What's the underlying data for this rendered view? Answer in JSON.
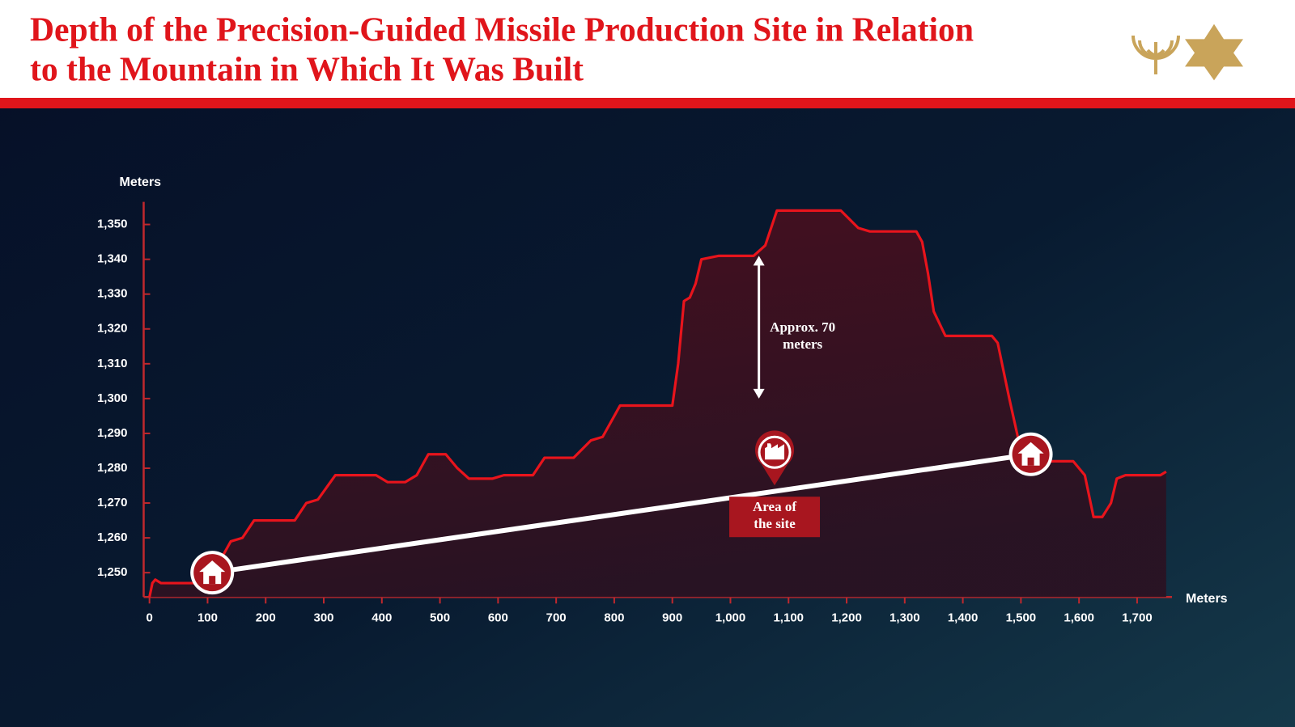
{
  "chart_data": {
    "type": "area",
    "title": [
      "Depth of the Precision-Guided Missile Production Site in Relation",
      "to the Mountain in Which It Was Built"
    ],
    "ylabel": "Meters",
    "xlabel": "Meters",
    "color": "#e8141c",
    "x": [
      0,
      5,
      10,
      20,
      100,
      110,
      140,
      160,
      180,
      250,
      270,
      290,
      320,
      390,
      410,
      440,
      460,
      480,
      510,
      530,
      550,
      590,
      610,
      660,
      680,
      730,
      760,
      780,
      810,
      900,
      910,
      920,
      930,
      940,
      950,
      980,
      1040,
      1060,
      1080,
      1190,
      1220,
      1240,
      1320,
      1330,
      1340,
      1350,
      1370,
      1450,
      1460,
      1480,
      1500,
      1530,
      1590,
      1610,
      1625,
      1640,
      1655,
      1665,
      1680,
      1740,
      1750
    ],
    "values": [
      1243,
      1247,
      1248,
      1247,
      1247,
      1250,
      1259,
      1260,
      1265,
      1265,
      1270,
      1271,
      1278,
      1278,
      1276,
      1276,
      1278,
      1284,
      1284,
      1280,
      1277,
      1277,
      1278,
      1278,
      1283,
      1283,
      1288,
      1289,
      1298,
      1298,
      1310,
      1328,
      1329,
      1333,
      1340,
      1341,
      1341,
      1344,
      1354,
      1354,
      1349,
      1348,
      1348,
      1345,
      1336,
      1325,
      1318,
      1318,
      1316,
      1300,
      1285,
      1282,
      1282,
      1278,
      1266,
      1266,
      1270,
      1277,
      1278,
      1278,
      1279
    ],
    "tunnel": {
      "x": [
        108,
        1517
      ],
      "y": [
        1250,
        1284
      ]
    },
    "site": {
      "x": 1076,
      "y": 1276,
      "label": [
        "Area of",
        "the site"
      ]
    },
    "arrow": {
      "x": 1049,
      "y": [
        1300,
        1341
      ],
      "label": [
        "Approx. 70",
        "meters"
      ]
    },
    "xlim": [
      -10,
      1760
    ],
    "ylim": [
      1243,
      1356.5
    ],
    "xticks": [
      0,
      100,
      200,
      300,
      400,
      500,
      600,
      700,
      800,
      900,
      {
        "value": 1000,
        "label": "1,000"
      },
      {
        "value": 1100,
        "label": "1,100"
      },
      {
        "value": 1200,
        "label": "1,200"
      },
      {
        "value": 1300,
        "label": "1,300"
      },
      {
        "value": 1400,
        "label": "1,400"
      },
      {
        "value": 1500,
        "label": "1,500"
      },
      {
        "value": 1600,
        "label": "1,600"
      },
      {
        "value": 1700,
        "label": "1,700"
      }
    ],
    "yticks": [
      {
        "value": 1250,
        "label": "1,250"
      },
      {
        "value": 1260,
        "label": "1,260"
      },
      {
        "value": 1270,
        "label": "1,270"
      },
      {
        "value": 1280,
        "label": "1,280"
      },
      {
        "value": 1290,
        "label": "1,290"
      },
      {
        "value": 1300,
        "label": "1,300"
      },
      {
        "value": 1310,
        "label": "1,310"
      },
      {
        "value": 1320,
        "label": "1,320"
      },
      {
        "value": 1330,
        "label": "1,330"
      },
      {
        "value": 1340,
        "label": "1,340"
      },
      {
        "value": 1350,
        "label": "1,350"
      }
    ]
  }
}
